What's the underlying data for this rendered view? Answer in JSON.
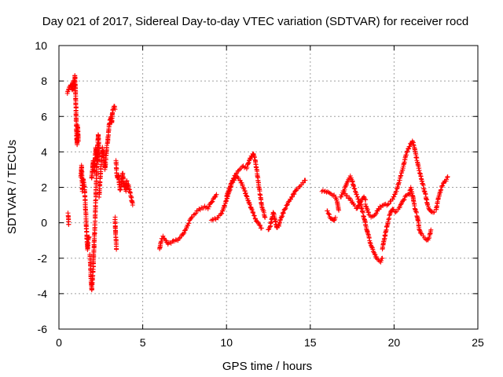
{
  "chart_data": {
    "type": "scatter",
    "title": "Day 021 of 2017, Sidereal Day-to-day VTEC variation (SDTVAR) for receiver rocd",
    "xlabel": "GPS time / hours",
    "ylabel": "SDTVAR / TECUs",
    "xlim": [
      0,
      25
    ],
    "ylim": [
      -6,
      10
    ],
    "xticks": [
      0,
      5,
      10,
      15,
      20,
      25
    ],
    "yticks": [
      -6,
      -4,
      -2,
      0,
      2,
      4,
      6,
      8,
      10
    ],
    "xtick_labels": [
      "0",
      "5",
      "10",
      "15",
      "20",
      "25"
    ],
    "ytick_labels": [
      "-6",
      "-4",
      "-2",
      "0",
      "2",
      "4",
      "6",
      "8",
      "10"
    ],
    "grid": true,
    "marker": "+",
    "color": "#ff0000",
    "series": [
      {
        "name": "SDTVAR",
        "segments": [
          [
            [
              0.55,
              0.5
            ],
            [
              0.58,
              -0.1
            ]
          ],
          [
            [
              0.5,
              7.3
            ],
            [
              0.6,
              7.6
            ],
            [
              0.7,
              7.8
            ],
            [
              0.8,
              7.5
            ],
            [
              0.85,
              8.0
            ],
            [
              0.9,
              7.6
            ],
            [
              0.95,
              8.3
            ],
            [
              1.0,
              7.2
            ],
            [
              1.02,
              6.0
            ],
            [
              1.05,
              5.0
            ],
            [
              1.08,
              4.4
            ],
            [
              1.12,
              5.5
            ],
            [
              1.16,
              4.6
            ]
          ],
          [
            [
              1.3,
              2.6
            ],
            [
              1.35,
              3.2
            ],
            [
              1.4,
              1.8
            ],
            [
              1.45,
              2.5
            ],
            [
              1.5,
              2.2
            ],
            [
              1.55,
              1.5
            ],
            [
              1.6,
              0.6
            ],
            [
              1.65,
              -0.5
            ],
            [
              1.7,
              -1.5
            ],
            [
              1.75,
              -1.0
            ],
            [
              1.8,
              -0.8
            ]
          ],
          [
            [
              1.85,
              -1.8
            ],
            [
              1.9,
              -2.8
            ],
            [
              1.95,
              -3.8
            ],
            [
              2.0,
              -3.2
            ],
            [
              2.05,
              -2.5
            ],
            [
              2.1,
              -1.2
            ],
            [
              2.15,
              0.0
            ],
            [
              2.2,
              1.5
            ],
            [
              2.25,
              3.0
            ],
            [
              2.3,
              4.2
            ],
            [
              2.35,
              5.0
            ],
            [
              2.4,
              4.0
            ]
          ],
          [
            [
              1.95,
              2.5
            ],
            [
              2.0,
              3.0
            ],
            [
              2.05,
              3.5
            ],
            [
              2.1,
              2.9
            ],
            [
              2.15,
              3.6
            ],
            [
              2.2,
              4.2
            ],
            [
              2.25,
              3.8
            ],
            [
              2.3,
              3.4
            ],
            [
              2.35,
              4.0
            ]
          ],
          [
            [
              2.4,
              1.5
            ],
            [
              2.45,
              2.3
            ],
            [
              2.5,
              3.0
            ],
            [
              2.55,
              3.8
            ],
            [
              2.6,
              4.2
            ],
            [
              2.65,
              4.0
            ],
            [
              2.7,
              3.5
            ],
            [
              2.75,
              3.0
            ],
            [
              2.8,
              3.6
            ],
            [
              2.85,
              4.3
            ],
            [
              2.9,
              4.5
            ],
            [
              2.95,
              5.0
            ],
            [
              3.0,
              5.5
            ],
            [
              3.05,
              5.8
            ],
            [
              3.1,
              6.0
            ],
            [
              3.15,
              5.6
            ],
            [
              3.2,
              6.3
            ],
            [
              3.25,
              6.5
            ],
            [
              3.3,
              6.6
            ],
            [
              3.35,
              6.4
            ]
          ],
          [
            [
              3.35,
              0.3
            ],
            [
              3.37,
              -0.4
            ],
            [
              3.4,
              -0.9
            ],
            [
              3.43,
              -1.5
            ]
          ],
          [
            [
              3.4,
              3.5
            ],
            [
              3.45,
              2.8
            ],
            [
              3.5,
              2.5
            ],
            [
              3.55,
              2.7
            ],
            [
              3.6,
              2.2
            ],
            [
              3.65,
              1.8
            ],
            [
              3.7,
              2.0
            ],
            [
              3.75,
              2.4
            ],
            [
              3.8,
              2.8
            ],
            [
              3.85,
              2.3
            ],
            [
              3.9,
              2.0
            ],
            [
              3.95,
              2.2
            ],
            [
              4.0,
              1.8
            ],
            [
              4.05,
              2.4
            ],
            [
              4.1,
              2.0
            ],
            [
              4.15,
              2.1
            ],
            [
              4.2,
              1.9
            ],
            [
              4.3,
              1.5
            ],
            [
              4.4,
              1.0
            ]
          ],
          [
            [
              6.0,
              -1.5
            ],
            [
              6.1,
              -1.0
            ],
            [
              6.2,
              -0.8
            ],
            [
              6.3,
              -0.9
            ],
            [
              6.4,
              -1.0
            ],
            [
              6.5,
              -1.2
            ],
            [
              6.7,
              -1.1
            ],
            [
              6.9,
              -1.0
            ],
            [
              7.1,
              -1.0
            ],
            [
              7.3,
              -0.8
            ],
            [
              7.5,
              -0.5
            ],
            [
              7.7,
              -0.1
            ],
            [
              7.9,
              0.3
            ],
            [
              8.1,
              0.5
            ],
            [
              8.3,
              0.7
            ],
            [
              8.5,
              0.8
            ],
            [
              8.7,
              0.9
            ],
            [
              8.9,
              0.8
            ],
            [
              9.0,
              1.0
            ],
            [
              9.2,
              1.3
            ],
            [
              9.4,
              1.6
            ]
          ],
          [
            [
              9.1,
              0.1
            ],
            [
              9.3,
              0.2
            ],
            [
              9.5,
              0.3
            ],
            [
              9.7,
              0.5
            ],
            [
              9.9,
              1.0
            ],
            [
              10.1,
              1.6
            ],
            [
              10.3,
              2.2
            ],
            [
              10.5,
              2.5
            ],
            [
              10.6,
              2.6
            ],
            [
              10.8,
              2.4
            ],
            [
              11.0,
              2.0
            ],
            [
              11.2,
              1.5
            ],
            [
              11.4,
              1.0
            ],
            [
              11.6,
              0.5
            ],
            [
              11.8,
              0.1
            ],
            [
              12.0,
              -0.2
            ],
            [
              12.1,
              -0.3
            ]
          ],
          [
            [
              10.0,
              1.5
            ],
            [
              10.2,
              2.0
            ],
            [
              10.4,
              2.5
            ],
            [
              10.6,
              2.8
            ],
            [
              10.8,
              3.0
            ],
            [
              11.0,
              3.2
            ],
            [
              11.2,
              3.1
            ],
            [
              11.4,
              3.6
            ],
            [
              11.6,
              3.9
            ],
            [
              11.7,
              3.6
            ],
            [
              11.8,
              3.0
            ],
            [
              11.9,
              2.3
            ],
            [
              12.0,
              1.6
            ],
            [
              12.1,
              1.0
            ],
            [
              12.2,
              0.7
            ],
            [
              12.3,
              0.3
            ]
          ],
          [
            [
              12.5,
              -0.4
            ],
            [
              12.6,
              -0.2
            ],
            [
              12.7,
              0.2
            ],
            [
              12.8,
              0.6
            ],
            [
              12.9,
              0.2
            ],
            [
              13.0,
              -0.3
            ],
            [
              13.1,
              -0.2
            ],
            [
              13.2,
              0.1
            ],
            [
              13.4,
              0.6
            ],
            [
              13.6,
              1.0
            ],
            [
              13.8,
              1.3
            ],
            [
              14.0,
              1.6
            ],
            [
              14.2,
              1.9
            ],
            [
              14.4,
              2.1
            ],
            [
              14.6,
              2.3
            ],
            [
              14.7,
              2.4
            ]
          ],
          [
            [
              15.7,
              1.8
            ],
            [
              15.9,
              1.8
            ],
            [
              16.1,
              1.7
            ],
            [
              16.3,
              1.6
            ],
            [
              16.5,
              1.5
            ],
            [
              16.6,
              1.2
            ],
            [
              16.7,
              0.7
            ]
          ],
          [
            [
              16.0,
              0.7
            ],
            [
              16.1,
              0.5
            ],
            [
              16.2,
              0.3
            ],
            [
              16.3,
              0.2
            ],
            [
              16.4,
              0.1
            ],
            [
              16.5,
              0.3
            ]
          ],
          [
            [
              16.8,
              1.4
            ],
            [
              17.0,
              1.8
            ],
            [
              17.2,
              2.3
            ],
            [
              17.4,
              2.6
            ],
            [
              17.5,
              2.4
            ],
            [
              17.6,
              2.0
            ],
            [
              17.8,
              1.5
            ],
            [
              18.0,
              1.0
            ],
            [
              18.2,
              0.3
            ],
            [
              18.4,
              -0.5
            ],
            [
              18.6,
              -1.2
            ],
            [
              18.8,
              -1.7
            ],
            [
              19.0,
              -2.1
            ],
            [
              19.2,
              -2.2
            ],
            [
              19.3,
              -2.0
            ]
          ],
          [
            [
              17.0,
              1.7
            ],
            [
              17.2,
              1.5
            ],
            [
              17.4,
              1.3
            ],
            [
              17.6,
              1.0
            ],
            [
              17.8,
              0.8
            ],
            [
              18.0,
              1.2
            ],
            [
              18.2,
              1.5
            ],
            [
              18.3,
              1.3
            ]
          ],
          [
            [
              18.3,
              1.0
            ],
            [
              18.5,
              0.5
            ],
            [
              18.7,
              0.3
            ],
            [
              18.9,
              0.5
            ],
            [
              19.1,
              0.8
            ],
            [
              19.3,
              1.0
            ],
            [
              19.5,
              1.0
            ],
            [
              19.7,
              1.1
            ],
            [
              19.9,
              1.3
            ],
            [
              20.1,
              1.7
            ],
            [
              20.3,
              2.3
            ],
            [
              20.5,
              3.0
            ],
            [
              20.7,
              3.8
            ],
            [
              20.9,
              4.3
            ],
            [
              21.0,
              4.5
            ],
            [
              21.1,
              4.6
            ],
            [
              21.2,
              4.3
            ],
            [
              21.3,
              3.8
            ],
            [
              21.5,
              3.0
            ],
            [
              21.7,
              2.2
            ],
            [
              21.9,
              1.5
            ],
            [
              22.0,
              1.0
            ],
            [
              22.2,
              0.6
            ],
            [
              22.4,
              0.6
            ]
          ],
          [
            [
              19.3,
              -1.5
            ],
            [
              19.5,
              -0.5
            ],
            [
              19.7,
              0.3
            ],
            [
              19.9,
              0.8
            ],
            [
              20.1,
              0.6
            ],
            [
              20.3,
              0.8
            ],
            [
              20.5,
              1.2
            ],
            [
              20.7,
              1.5
            ],
            [
              20.9,
              1.6
            ],
            [
              21.0,
              2.0
            ],
            [
              21.1,
              1.6
            ],
            [
              21.2,
              1.0
            ],
            [
              21.4,
              0.3
            ],
            [
              21.5,
              -0.3
            ],
            [
              21.6,
              -0.6
            ],
            [
              21.8,
              -0.8
            ],
            [
              22.0,
              -1.0
            ],
            [
              22.1,
              -0.8
            ],
            [
              22.2,
              -0.4
            ]
          ],
          [
            [
              22.5,
              0.7
            ],
            [
              22.6,
              1.2
            ],
            [
              22.7,
              1.6
            ],
            [
              22.8,
              1.9
            ],
            [
              22.9,
              2.1
            ],
            [
              23.0,
              2.3
            ],
            [
              23.1,
              2.4
            ],
            [
              23.2,
              2.6
            ]
          ]
        ]
      }
    ]
  }
}
